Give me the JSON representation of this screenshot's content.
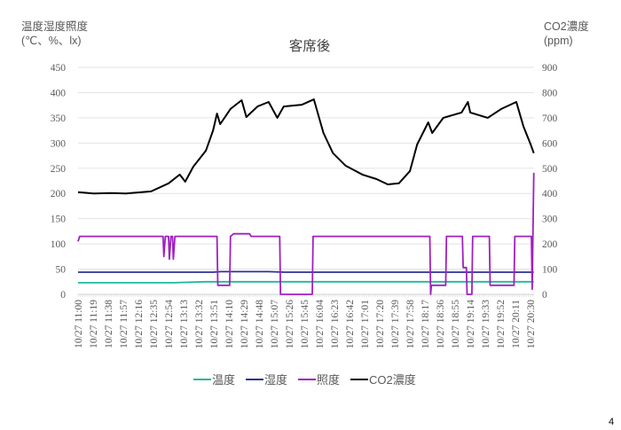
{
  "page_number": "4",
  "chart_data": {
    "type": "line",
    "title": "客席後",
    "ylabel_left": [
      "温度湿度照度",
      "(℃、%、lx)"
    ],
    "ylabel_right": [
      "CO2濃度",
      "(ppm)"
    ],
    "ylim_left": [
      0,
      450
    ],
    "ylim_right": [
      0,
      900
    ],
    "yticks_left": [
      "0",
      "50",
      "100",
      "150",
      "200",
      "250",
      "300",
      "350",
      "400",
      "450"
    ],
    "yticks_right": [
      "0",
      "100",
      "200",
      "300",
      "400",
      "500",
      "600",
      "700",
      "800",
      "900"
    ],
    "xtick_labels": [
      "10/27 11:00",
      "10/27 11:19",
      "10/27 11:38",
      "10/27 11:57",
      "10/27 12:16",
      "10/27 12:35",
      "10/27 12:54",
      "10/27 13:13",
      "10/27 13:32",
      "10/27 13:51",
      "10/27 14:10",
      "10/27 14:29",
      "10/27 14:48",
      "10/27 15:07",
      "10/27 15:26",
      "10/27 15:45",
      "10/27 16:04",
      "10/27 16:23",
      "10/27 16:42",
      "10/27 17:01",
      "10/27 17:20",
      "10/27 17:39",
      "10/27 17:58",
      "10/27 18:17",
      "10/27 18:36",
      "10/27 18:55",
      "10/27 19:14",
      "10/27 19:33",
      "10/27 19:52",
      "10/27 20:11",
      "10/27 20:30"
    ],
    "grid": true,
    "legend_position": "bottom",
    "series": [
      {
        "name": "温度",
        "axis": "left",
        "color": "#1FB89A",
        "points": [
          [
            "11:00",
            23
          ],
          [
            "13:00",
            23
          ],
          [
            "13:40",
            25
          ],
          [
            "20:34",
            25
          ]
        ]
      },
      {
        "name": "湿度",
        "axis": "left",
        "color": "#2E3192",
        "points": [
          [
            "11:00",
            44
          ],
          [
            "13:50",
            44
          ],
          [
            "14:00",
            45
          ],
          [
            "15:00",
            45
          ],
          [
            "15:20",
            44
          ],
          [
            "20:34",
            44
          ]
        ]
      },
      {
        "name": "照度",
        "axis": "left",
        "color": "#A020C0",
        "points": [
          [
            "11:00",
            105
          ],
          [
            "11:02",
            115
          ],
          [
            "12:47",
            115
          ],
          [
            "12:48",
            75
          ],
          [
            "12:50",
            115
          ],
          [
            "12:54",
            115
          ],
          [
            "12:55",
            70
          ],
          [
            "12:57",
            115
          ],
          [
            "12:59",
            115
          ],
          [
            "13:00",
            70
          ],
          [
            "13:02",
            115
          ],
          [
            "13:55",
            115
          ],
          [
            "13:56",
            18
          ],
          [
            "14:11",
            18
          ],
          [
            "14:12",
            115
          ],
          [
            "14:16",
            120
          ],
          [
            "14:36",
            120
          ],
          [
            "14:38",
            115
          ],
          [
            "15:14",
            115
          ],
          [
            "15:15",
            0
          ],
          [
            "15:55",
            0
          ],
          [
            "15:56",
            115
          ],
          [
            "18:23",
            115
          ],
          [
            "18:24",
            0
          ],
          [
            "18:25",
            18
          ],
          [
            "18:43",
            18
          ],
          [
            "18:44",
            115
          ],
          [
            "19:04",
            115
          ],
          [
            "19:05",
            53
          ],
          [
            "19:09",
            53
          ],
          [
            "19:10",
            0
          ],
          [
            "19:16",
            0
          ],
          [
            "19:17",
            115
          ],
          [
            "19:38",
            115
          ],
          [
            "19:39",
            18
          ],
          [
            "20:09",
            18
          ],
          [
            "20:10",
            115
          ],
          [
            "20:31",
            115
          ],
          [
            "20:32",
            10
          ],
          [
            "20:34",
            241
          ]
        ]
      },
      {
        "name": "CO2濃度",
        "axis": "right",
        "color": "#000000",
        "points": [
          [
            "11:00",
            405
          ],
          [
            "11:20",
            400
          ],
          [
            "11:40",
            402
          ],
          [
            "12:00",
            400
          ],
          [
            "12:20",
            405
          ],
          [
            "12:32",
            408
          ],
          [
            "12:54",
            440
          ],
          [
            "13:08",
            475
          ],
          [
            "13:15",
            447
          ],
          [
            "13:25",
            506
          ],
          [
            "13:41",
            570
          ],
          [
            "13:50",
            650
          ],
          [
            "13:55",
            717
          ],
          [
            "13:59",
            675
          ],
          [
            "14:12",
            735
          ],
          [
            "14:26",
            770
          ],
          [
            "14:32",
            703
          ],
          [
            "14:46",
            745
          ],
          [
            "15:00",
            763
          ],
          [
            "15:11",
            700
          ],
          [
            "15:19",
            745
          ],
          [
            "15:42",
            752
          ],
          [
            "15:57",
            773
          ],
          [
            "16:09",
            640
          ],
          [
            "16:21",
            560
          ],
          [
            "16:37",
            510
          ],
          [
            "16:58",
            475
          ],
          [
            "17:16",
            457
          ],
          [
            "17:30",
            436
          ],
          [
            "17:44",
            440
          ],
          [
            "17:58",
            489
          ],
          [
            "18:07",
            594
          ],
          [
            "18:21",
            682
          ],
          [
            "18:26",
            640
          ],
          [
            "18:40",
            700
          ],
          [
            "19:03",
            721
          ],
          [
            "19:11",
            763
          ],
          [
            "19:14",
            721
          ],
          [
            "19:36",
            700
          ],
          [
            "19:53",
            735
          ],
          [
            "20:12",
            763
          ],
          [
            "20:21",
            665
          ],
          [
            "20:30",
            594
          ],
          [
            "20:34",
            560
          ]
        ]
      }
    ]
  }
}
